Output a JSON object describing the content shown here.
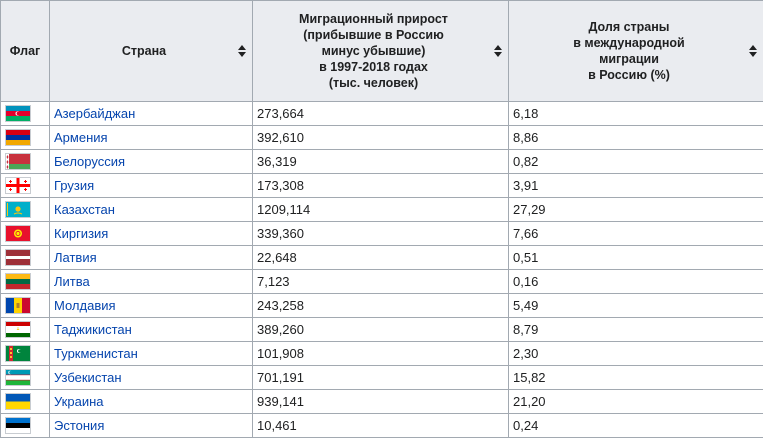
{
  "table": {
    "headers": {
      "flag": "Флаг",
      "country": "Страна",
      "growth_lines": [
        "Миграционный прирост",
        "(прибывшие в Россию",
        "минус убывшие)",
        "в 1997-2018 годах",
        "(тыс. человек)"
      ],
      "share_lines": [
        "Доля страны",
        "в международной",
        "миграции",
        "в Россию (%)"
      ]
    },
    "rows": [
      {
        "flag": "azerbaijan-flag",
        "country": "Азербайджан",
        "growth": "273,664",
        "share": "6,18"
      },
      {
        "flag": "armenia-flag",
        "country": "Армения",
        "growth": "392,610",
        "share": "8,86"
      },
      {
        "flag": "belarus-flag",
        "country": "Белоруссия",
        "growth": "36,319",
        "share": "0,82"
      },
      {
        "flag": "georgia-flag",
        "country": "Грузия",
        "growth": "173,308",
        "share": "3,91"
      },
      {
        "flag": "kazakhstan-flag",
        "country": "Казахстан",
        "growth": "1209,114",
        "share": "27,29"
      },
      {
        "flag": "kyrgyzstan-flag",
        "country": "Киргизия",
        "growth": "339,360",
        "share": "7,66"
      },
      {
        "flag": "latvia-flag",
        "country": "Латвия",
        "growth": "22,648",
        "share": "0,51"
      },
      {
        "flag": "lithuania-flag",
        "country": "Литва",
        "growth": "7,123",
        "share": "0,16"
      },
      {
        "flag": "moldova-flag",
        "country": "Молдавия",
        "growth": "243,258",
        "share": "5,49"
      },
      {
        "flag": "tajikistan-flag",
        "country": "Таджикистан",
        "growth": "389,260",
        "share": "8,79"
      },
      {
        "flag": "turkmenistan-flag",
        "country": "Туркменистан",
        "growth": "101,908",
        "share": "2,30"
      },
      {
        "flag": "uzbekistan-flag",
        "country": "Узбекистан",
        "growth": "701,191",
        "share": "15,82"
      },
      {
        "flag": "ukraine-flag",
        "country": "Украина",
        "growth": "939,141",
        "share": "21,20"
      },
      {
        "flag": "estonia-flag",
        "country": "Эстония",
        "growth": "10,461",
        "share": "0,24"
      }
    ]
  },
  "colors": {
    "link": "#0645ad",
    "header_bg": "#eaecf0",
    "border": "#a2a9b1"
  }
}
